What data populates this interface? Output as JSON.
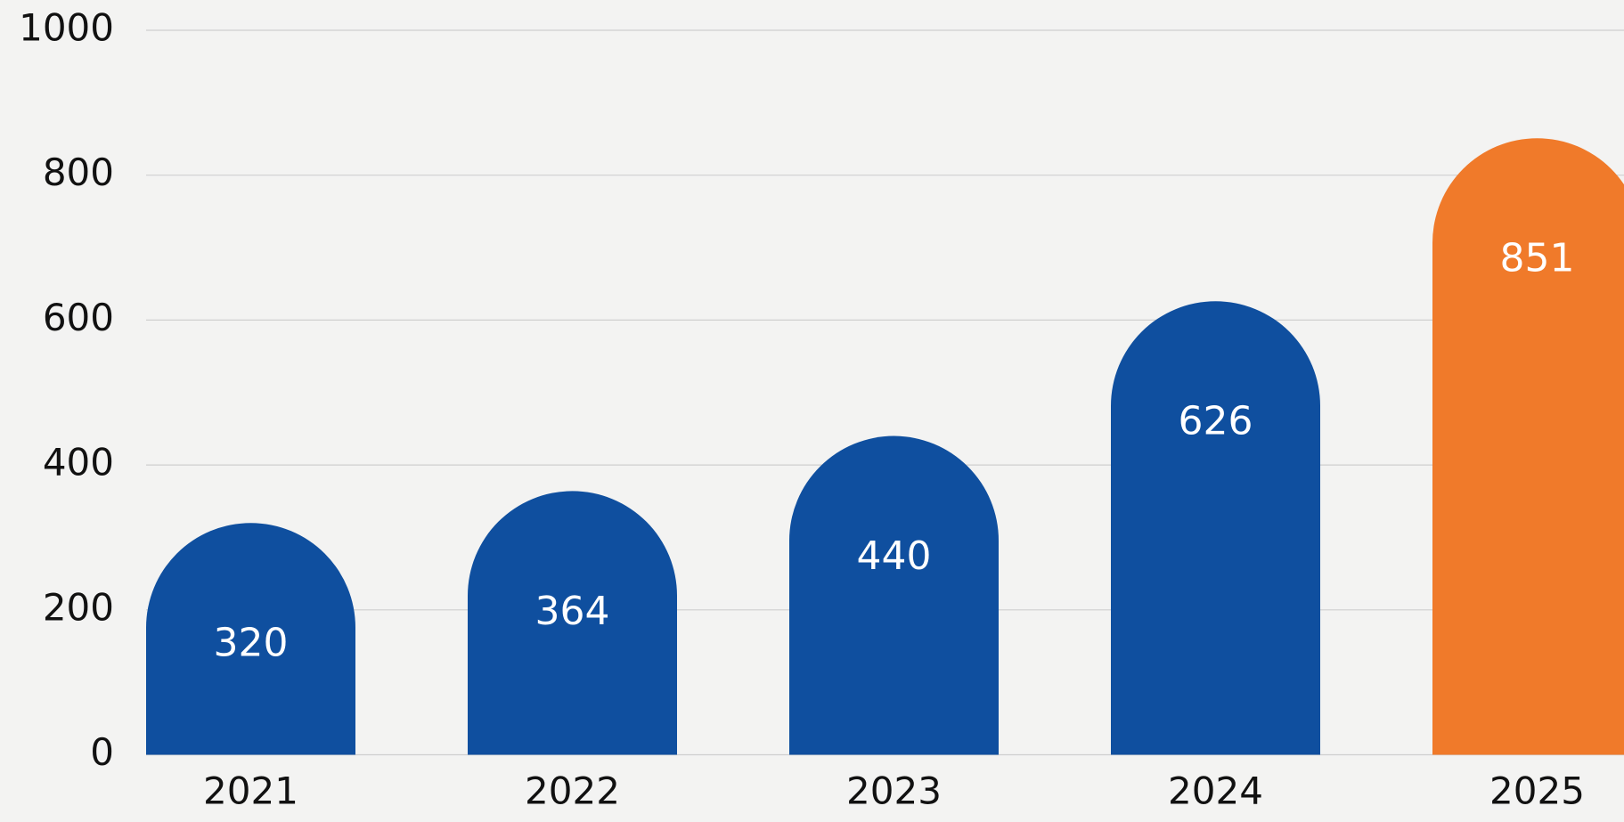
{
  "chart_data": {
    "type": "bar",
    "categories": [
      "2021",
      "2022",
      "2023",
      "2024",
      "2025"
    ],
    "values": [
      320,
      364,
      440,
      626,
      851
    ],
    "colors": [
      "#0f4f9f",
      "#0f4f9f",
      "#0f4f9f",
      "#0f4f9f",
      "#f07a2a"
    ],
    "ylim": [
      0,
      1000
    ],
    "yticks": [
      0,
      200,
      400,
      600,
      800,
      1000
    ],
    "grid": true
  }
}
